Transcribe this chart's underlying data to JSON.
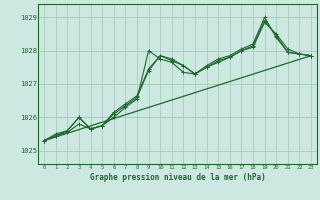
{
  "title": "Graphe pression niveau de la mer (hPa)",
  "bg_color": "#cce8e0",
  "grid_color": "#aaccbb",
  "line_color": "#1a6b2a",
  "xlim": [
    -0.5,
    23.5
  ],
  "ylim": [
    1024.6,
    1029.4
  ],
  "yticks": [
    1025,
    1026,
    1027,
    1028,
    1029
  ],
  "xticks": [
    0,
    1,
    2,
    3,
    4,
    5,
    6,
    7,
    8,
    9,
    10,
    11,
    12,
    13,
    14,
    15,
    16,
    17,
    18,
    19,
    20,
    21,
    22,
    23
  ],
  "series1_x": [
    0,
    1,
    2,
    3,
    4,
    5,
    6,
    7,
    8,
    9,
    10,
    11,
    12,
    13,
    14,
    15,
    16,
    17,
    18,
    19,
    20,
    21,
    22,
    23
  ],
  "series1_y": [
    1025.3,
    1025.5,
    1025.6,
    1026.0,
    1025.65,
    1025.75,
    1026.1,
    1026.35,
    1026.6,
    1027.4,
    1027.85,
    1027.75,
    1027.55,
    1027.3,
    1027.5,
    1027.65,
    1027.8,
    1028.0,
    1028.1,
    1028.85,
    1028.5,
    1028.05,
    1027.9,
    1027.85
  ],
  "series2_x": [
    0,
    1,
    2,
    3,
    4,
    5,
    6,
    7,
    8,
    9,
    10,
    11,
    12,
    13,
    14,
    15,
    16,
    17,
    18,
    19,
    20,
    21,
    22,
    23
  ],
  "series2_y": [
    1025.3,
    1025.45,
    1025.55,
    1025.8,
    1025.65,
    1025.75,
    1026.0,
    1026.3,
    1026.55,
    1028.0,
    1027.75,
    1027.65,
    1027.35,
    1027.3,
    1027.55,
    1027.75,
    1027.85,
    1028.05,
    1028.2,
    1029.0,
    1028.4,
    1027.95,
    1027.9,
    1027.85
  ],
  "series3_x": [
    0,
    23
  ],
  "series3_y": [
    1025.3,
    1027.85
  ],
  "series4_x": [
    0,
    1,
    2,
    3,
    4,
    5,
    6,
    7,
    8,
    9,
    10,
    11,
    12,
    13,
    14,
    15,
    16,
    17,
    18,
    19,
    20,
    21,
    22,
    23
  ],
  "series4_y": [
    1025.3,
    1025.45,
    1025.6,
    1026.0,
    1025.65,
    1025.75,
    1026.15,
    1026.4,
    1026.65,
    1027.45,
    1027.85,
    1027.7,
    1027.55,
    1027.3,
    1027.5,
    1027.7,
    1027.8,
    1028.0,
    1028.15,
    1028.9,
    1028.45,
    1027.95,
    1027.9,
    1027.85
  ]
}
